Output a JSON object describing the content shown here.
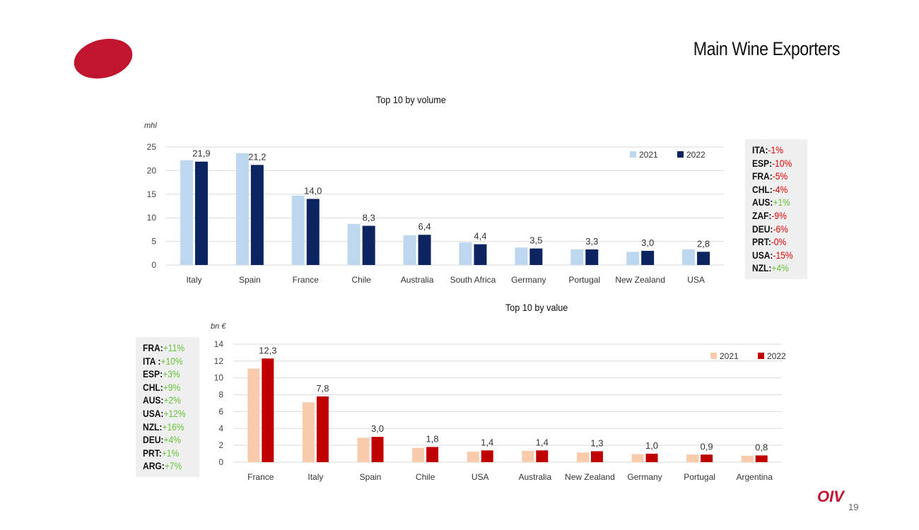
{
  "slide_title": "Main Wine Exporters",
  "colors": {
    "volume_2021": "#bdd7ee",
    "volume_2022": "#0c2560",
    "value_2021": "#f8cbad",
    "value_2022": "#c00000",
    "negative": "#e00000",
    "positive": "#66c33a",
    "brand": "#c0142f"
  },
  "chart_data": [
    {
      "type": "bar",
      "title": "Top 10 by volume",
      "ylabel": "mhl",
      "ylim": [
        0,
        25
      ],
      "yticks": [
        0,
        5,
        10,
        15,
        20,
        25
      ],
      "grid": true,
      "legend_position": "top-right",
      "categories": [
        "Italy",
        "Spain",
        "France",
        "Chile",
        "Australia",
        "South Africa",
        "Germany",
        "Portugal",
        "New Zealand",
        "USA"
      ],
      "series": [
        {
          "name": "2021",
          "values": [
            22.2,
            23.7,
            14.7,
            8.7,
            6.3,
            4.8,
            3.7,
            3.3,
            2.8,
            3.3
          ]
        },
        {
          "name": "2022",
          "values": [
            21.9,
            21.2,
            14.0,
            8.3,
            6.4,
            4.4,
            3.5,
            3.3,
            3.0,
            2.8
          ]
        }
      ],
      "data_labels": [
        "21,9",
        "21,2",
        "14,0",
        "8,3",
        "6,4",
        "4,4",
        "3,5",
        "3,3",
        "3,0",
        "2,8"
      ]
    },
    {
      "type": "bar",
      "title": "Top 10 by value",
      "ylabel": "bn €",
      "ylim": [
        0,
        14
      ],
      "yticks": [
        0,
        2,
        4,
        6,
        8,
        10,
        12,
        14
      ],
      "grid": true,
      "legend_position": "top-right",
      "categories": [
        "France",
        "Italy",
        "Spain",
        "Chile",
        "USA",
        "Australia",
        "New Zealand",
        "Germany",
        "Portugal",
        "Argentina"
      ],
      "series": [
        {
          "name": "2021",
          "values": [
            11.1,
            7.1,
            2.9,
            1.7,
            1.25,
            1.35,
            1.15,
            0.95,
            0.9,
            0.75
          ]
        },
        {
          "name": "2022",
          "values": [
            12.3,
            7.8,
            3.0,
            1.8,
            1.4,
            1.4,
            1.3,
            1.0,
            0.9,
            0.8
          ]
        }
      ],
      "data_labels": [
        "12,3",
        "7,8",
        "3,0",
        "1,8",
        "1,4",
        "1,4",
        "1,3",
        "1,0",
        "0,9",
        "0,8"
      ]
    }
  ],
  "volume_changes": [
    {
      "code": "ITA:",
      "change": "-1%",
      "sign": "negative"
    },
    {
      "code": "ESP:",
      "change": "-10%",
      "sign": "negative"
    },
    {
      "code": "FRA:",
      "change": "-5%",
      "sign": "negative"
    },
    {
      "code": "CHL:",
      "change": "-4%",
      "sign": "negative"
    },
    {
      "code": "AUS:",
      "change": "+1%",
      "sign": "positive"
    },
    {
      "code": "ZAF:",
      "change": "-9%",
      "sign": "negative"
    },
    {
      "code": "DEU:",
      "change": "-6%",
      "sign": "negative"
    },
    {
      "code": "PRT:",
      "change": "-0%",
      "sign": "negative"
    },
    {
      "code": "USA:",
      "change": "-15%",
      "sign": "negative"
    },
    {
      "code": "NZL:",
      "change": "+4%",
      "sign": "positive"
    }
  ],
  "value_changes": [
    {
      "code": "FRA:",
      "change": "+11%",
      "sign": "positive"
    },
    {
      "code": "ITA :",
      "change": "+10%",
      "sign": "positive"
    },
    {
      "code": "ESP:",
      "change": "+3%",
      "sign": "positive"
    },
    {
      "code": "CHL:",
      "change": "+9%",
      "sign": "positive"
    },
    {
      "code": "AUS:",
      "change": "+2%",
      "sign": "positive"
    },
    {
      "code": "USA:",
      "change": "+12%",
      "sign": "positive"
    },
    {
      "code": "NZL:",
      "change": "+16%",
      "sign": "positive"
    },
    {
      "code": "DEU:",
      "change": "+4%",
      "sign": "positive"
    },
    {
      "code": "PRT:",
      "change": "+1%",
      "sign": "positive"
    },
    {
      "code": "ARG:",
      "change": "+7%",
      "sign": "positive"
    }
  ],
  "footer": {
    "brand": "OIV",
    "page_number": "19"
  }
}
